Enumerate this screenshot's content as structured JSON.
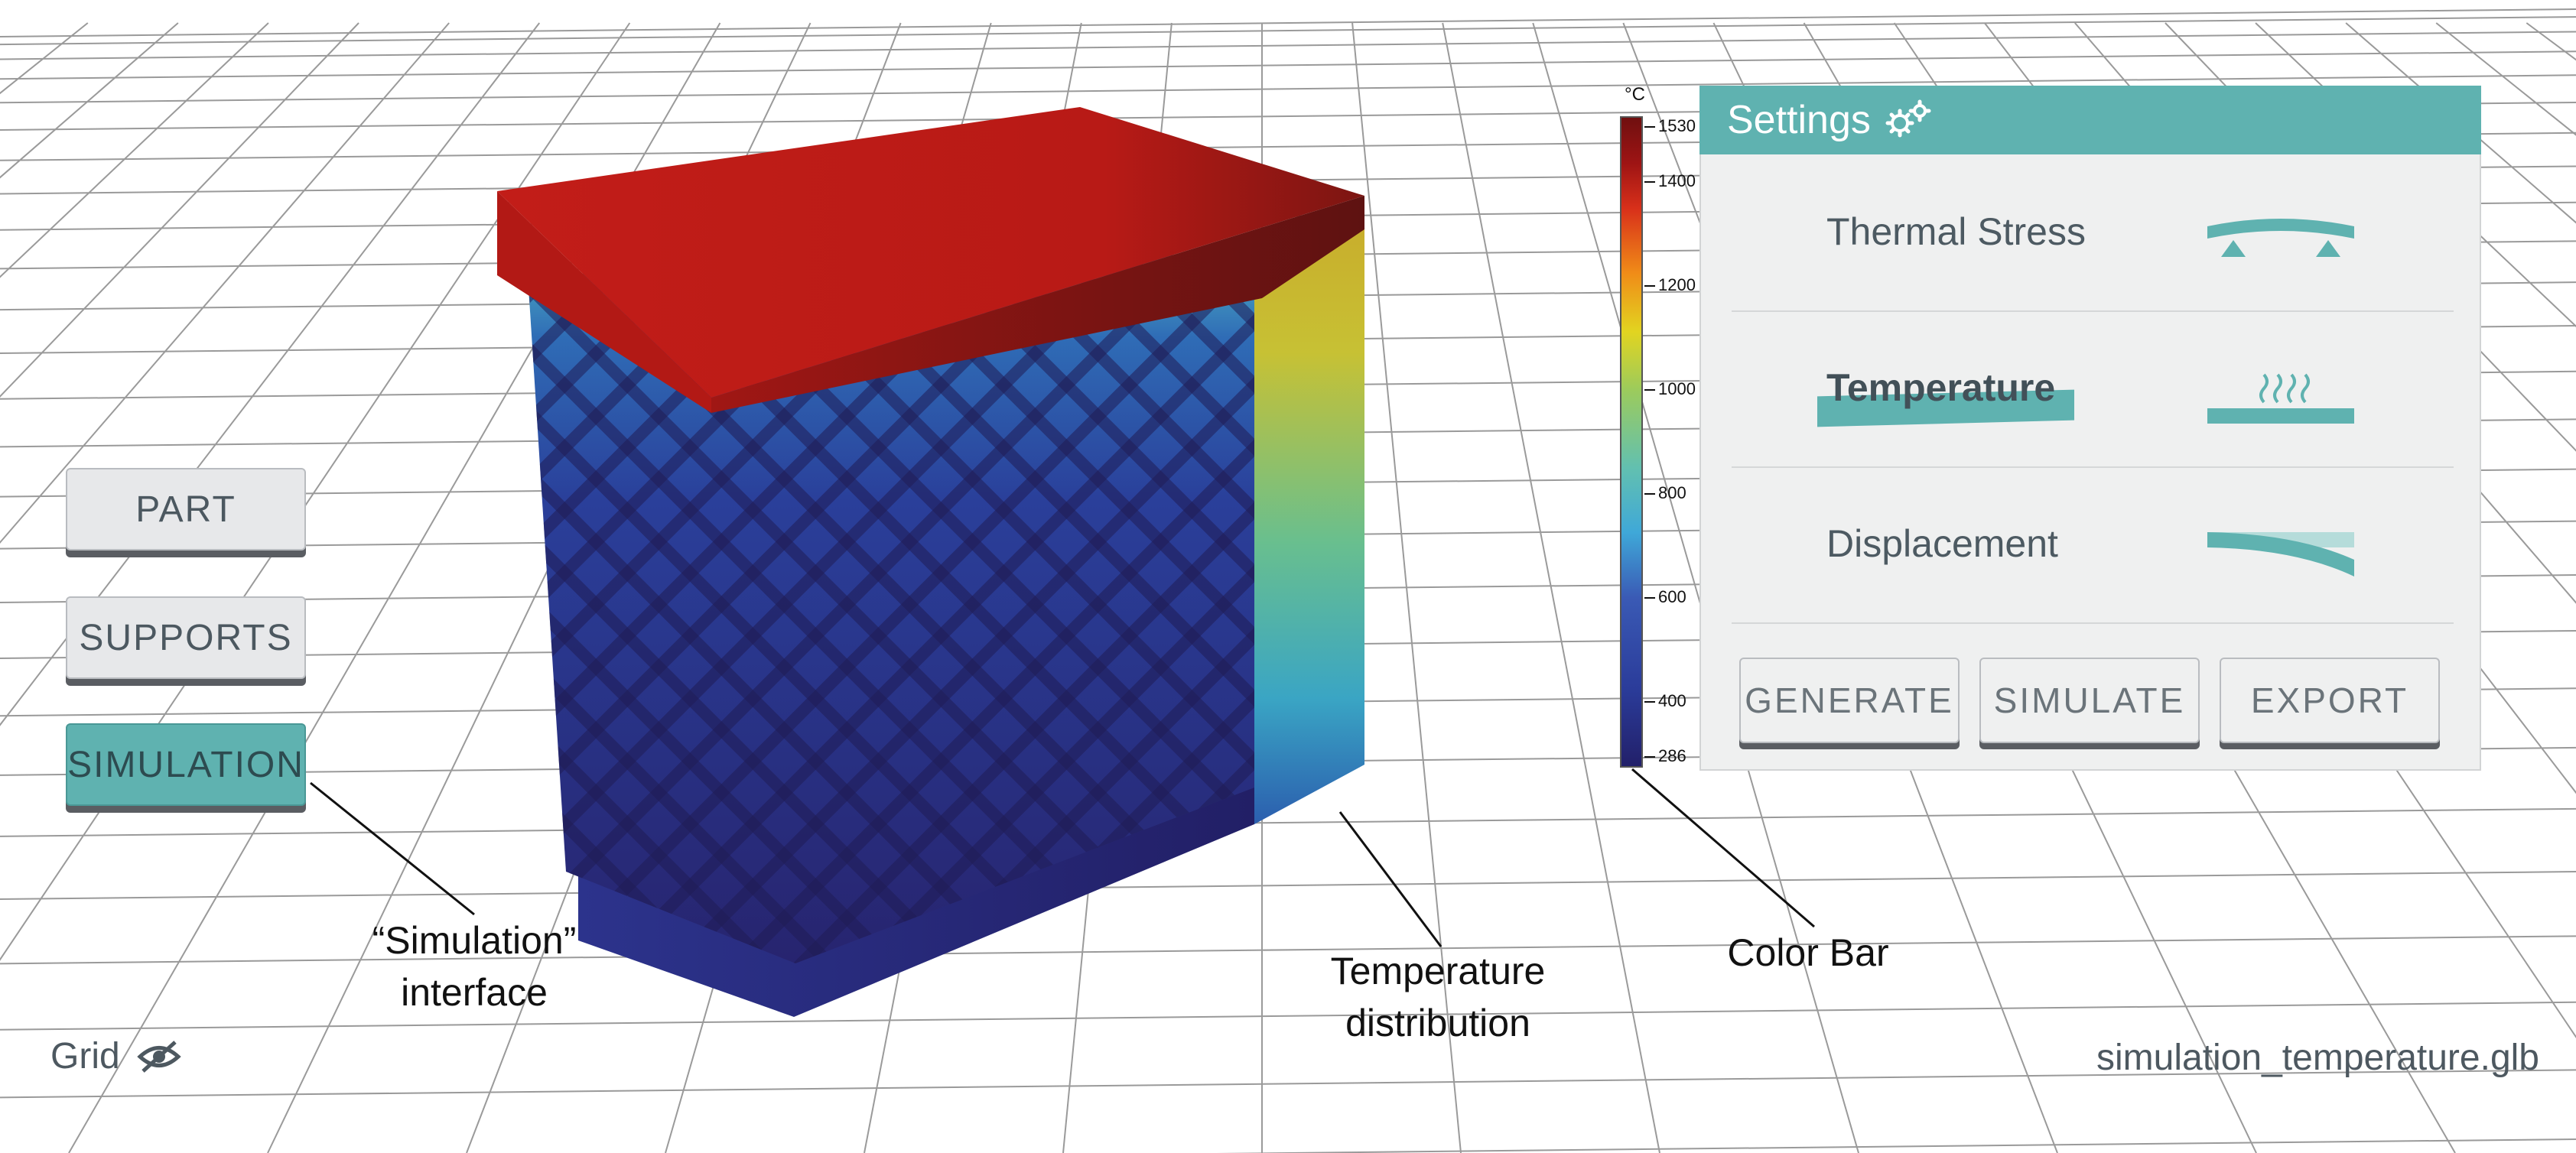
{
  "toolbar": {
    "part_label": "PART",
    "supports_label": "SUPPORTS",
    "simulation_label": "SIMULATION"
  },
  "color_bar": {
    "unit": "°C",
    "ticks": [
      "1530",
      "1400",
      "1200",
      "1000",
      "800",
      "600",
      "400",
      "286"
    ],
    "min": 286,
    "max": 1530
  },
  "settings": {
    "title": "Settings",
    "options": [
      {
        "label": "Thermal Stress",
        "icon": "beam-on-supports-icon"
      },
      {
        "label": "Temperature",
        "icon": "heat-plate-icon",
        "selected": true
      },
      {
        "label": "Displacement",
        "icon": "bent-beam-icon"
      }
    ],
    "generate_label": "GENERATE",
    "simulate_label": "SIMULATE",
    "export_label": "EXPORT"
  },
  "annotations": {
    "simulation_line1": "“Simulation”",
    "simulation_line2": "interface",
    "temperature_line1": "Temperature",
    "temperature_line2": "distribution",
    "colorbar": "Color Bar"
  },
  "footer": {
    "grid_label": "Grid",
    "filename": "simulation_temperature.glb"
  },
  "colors": {
    "accent": "#5fb2b0",
    "button_bg": "#e7e8ea",
    "panel_bg": "#eff0f0"
  }
}
